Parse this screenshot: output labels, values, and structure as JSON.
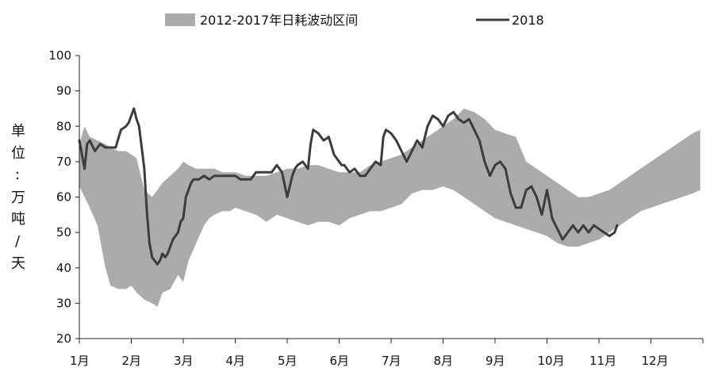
{
  "chart_data": {
    "type": "area+line",
    "ylabel_chars": [
      "单",
      "位",
      ":",
      "万",
      "吨",
      "/",
      "天"
    ],
    "ylim": [
      20,
      100
    ],
    "yticks": [
      20,
      30,
      40,
      50,
      60,
      70,
      80,
      90,
      100
    ],
    "yticks_label": [
      "20",
      "30",
      "40",
      "50",
      "60",
      "70",
      "80",
      "90",
      "100"
    ],
    "months": [
      "1月",
      "2月",
      "3月",
      "4月",
      "5月",
      "6月",
      "7月",
      "8月",
      "9月",
      "10月",
      "11月",
      "12月"
    ],
    "grid": false,
    "legend": {
      "placement": "top"
    },
    "colors": {
      "band": "#ababab",
      "line": "#3c3c3c"
    },
    "series": [
      {
        "name": "2012-2017年日耗波动区间",
        "kind": "range-band",
        "x": [
          1.0,
          1.1,
          1.2,
          1.35,
          1.5,
          1.6,
          1.75,
          1.9,
          2.0,
          2.1,
          2.25,
          2.4,
          2.5,
          2.6,
          2.75,
          2.9,
          3.0,
          3.1,
          3.25,
          3.4,
          3.5,
          3.6,
          3.75,
          3.9,
          4.0,
          4.2,
          4.4,
          4.6,
          4.8,
          5.0,
          5.2,
          5.4,
          5.6,
          5.8,
          6.0,
          6.2,
          6.4,
          6.6,
          6.8,
          7.0,
          7.2,
          7.4,
          7.6,
          7.8,
          8.0,
          8.2,
          8.4,
          8.6,
          8.8,
          9.0,
          9.2,
          9.4,
          9.6,
          9.8,
          10.0,
          10.2,
          10.4,
          10.6,
          10.8,
          11.0,
          11.2,
          11.4,
          11.6,
          11.8,
          12.0,
          12.2,
          12.4,
          12.6,
          12.8,
          12.95
        ],
        "low": [
          63,
          60,
          57,
          52,
          40,
          35,
          34,
          34,
          35,
          33,
          31,
          30,
          29,
          33,
          34,
          38,
          36,
          42,
          47,
          52,
          54,
          55,
          56,
          56,
          57,
          56,
          55,
          53,
          55,
          54,
          53,
          52,
          53,
          53,
          52,
          54,
          55,
          56,
          56,
          57,
          58,
          61,
          62,
          62,
          63,
          62,
          60,
          58,
          56,
          54,
          53,
          52,
          51,
          50,
          49,
          47,
          46,
          46,
          47,
          48,
          50,
          52,
          54,
          56,
          57,
          58,
          59,
          60,
          61,
          62
        ],
        "high": [
          75,
          80,
          77,
          76,
          75,
          74,
          73,
          73,
          72,
          71,
          62,
          60,
          62,
          64,
          66,
          68,
          70,
          69,
          68,
          68,
          68,
          68,
          67,
          67,
          67,
          66,
          66,
          66,
          67,
          68,
          68,
          69,
          69,
          68,
          67,
          67,
          67,
          69,
          70,
          71,
          72,
          74,
          76,
          78,
          80,
          82,
          85,
          84,
          82,
          79,
          78,
          77,
          70,
          68,
          66,
          64,
          62,
          60,
          60,
          61,
          62,
          64,
          66,
          68,
          70,
          72,
          74,
          76,
          78,
          79
        ]
      },
      {
        "name": "2018",
        "kind": "line",
        "x": [
          1.0,
          1.05,
          1.1,
          1.15,
          1.2,
          1.3,
          1.4,
          1.5,
          1.6,
          1.7,
          1.8,
          1.9,
          1.95,
          2.0,
          2.05,
          2.1,
          2.15,
          2.2,
          2.25,
          2.3,
          2.35,
          2.4,
          2.45,
          2.5,
          2.55,
          2.6,
          2.65,
          2.7,
          2.75,
          2.8,
          2.9,
          2.95,
          3.0,
          3.05,
          3.1,
          3.15,
          3.2,
          3.3,
          3.4,
          3.5,
          3.6,
          3.7,
          3.8,
          3.9,
          4.0,
          4.1,
          4.2,
          4.3,
          4.4,
          4.5,
          4.6,
          4.7,
          4.8,
          4.9,
          5.0,
          5.05,
          5.1,
          5.15,
          5.2,
          5.3,
          5.4,
          5.45,
          5.5,
          5.6,
          5.7,
          5.8,
          5.9,
          6.0,
          6.05,
          6.1,
          6.15,
          6.2,
          6.3,
          6.4,
          6.5,
          6.6,
          6.7,
          6.8,
          6.85,
          6.9,
          7.0,
          7.1,
          7.2,
          7.3,
          7.4,
          7.5,
          7.6,
          7.7,
          7.8,
          7.9,
          8.0,
          8.1,
          8.2,
          8.3,
          8.4,
          8.5,
          8.6,
          8.7,
          8.8,
          8.9,
          9.0,
          9.1,
          9.2,
          9.3,
          9.4,
          9.5,
          9.6,
          9.7,
          9.8,
          9.9,
          10.0,
          10.05,
          10.1,
          10.2,
          10.3,
          10.4,
          10.5,
          10.6,
          10.7,
          10.8,
          10.9,
          11.0,
          11.1,
          11.2,
          11.3,
          11.35
        ],
        "y": [
          76,
          72,
          68,
          75,
          76,
          73,
          75,
          74,
          74,
          74,
          79,
          80,
          81,
          83,
          85,
          82,
          80,
          74,
          68,
          56,
          47,
          43,
          42,
          41,
          42,
          44,
          43,
          44,
          46,
          48,
          50,
          53,
          54,
          60,
          62,
          64,
          65,
          65,
          66,
          65,
          66,
          66,
          66,
          66,
          66,
          65,
          65,
          65,
          67,
          67,
          67,
          67,
          69,
          67,
          60,
          63,
          66,
          68,
          69,
          70,
          68,
          75,
          79,
          78,
          76,
          77,
          72,
          70,
          69,
          69,
          68,
          67,
          68,
          66,
          66,
          68,
          70,
          69,
          77,
          79,
          78,
          76,
          73,
          70,
          73,
          76,
          74,
          80,
          83,
          82,
          80,
          83,
          84,
          82,
          81,
          82,
          79,
          76,
          70,
          66,
          69,
          70,
          68,
          61,
          57,
          57,
          62,
          63,
          60,
          55,
          62,
          58,
          54,
          51,
          48,
          50,
          52,
          50,
          52,
          50,
          52,
          51,
          50,
          49,
          50,
          52
        ]
      }
    ]
  }
}
